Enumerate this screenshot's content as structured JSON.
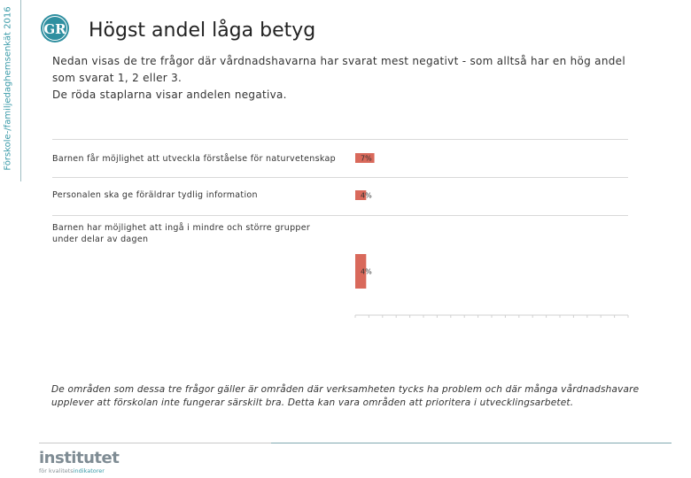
{
  "side_label": "Förskole-/familjedaghemsenkät 2016",
  "logo": {
    "text": "GR",
    "color": "#2f8fa0"
  },
  "title": "Högst andel låga betyg",
  "intro": {
    "line1": "Nedan visas de tre frågor där vårdnadshavarna har svarat mest negativt - som alltså har en hög andel som svarat 1, 2 eller 3.",
    "line2": "De röda staplarna visar andelen negativa."
  },
  "chart_data": {
    "type": "bar",
    "orientation": "horizontal",
    "categories": [
      "Barnen får möjlighet att utveckla förståelse för naturvetenskap",
      "Personalen ska ge föräldrar tydlig information",
      "Barnen har möjlighet att ingå i mindre och större grupper under delar av dagen"
    ],
    "values": [
      7,
      4,
      4
    ],
    "data_labels": [
      "7%",
      "4%",
      "4%"
    ],
    "bar_color": "#d9695b",
    "xlim": [
      0,
      100
    ],
    "grid": false
  },
  "footer": "De områden som dessa tre frågor gäller är områden där verksamheten tycks ha problem och där många vårdnadshavare upplever att förskolan inte fungerar särskilt bra. Detta kan vara områden att prioritera i utvecklingsarbetet.",
  "brand": {
    "name": "institutet",
    "sub_prefix": "för kvalitets",
    "sub_highlight": "indikatorer"
  },
  "colors": {
    "accent": "#3a9aa8",
    "bar": "#d9695b",
    "rule": "#7fa8b0"
  }
}
